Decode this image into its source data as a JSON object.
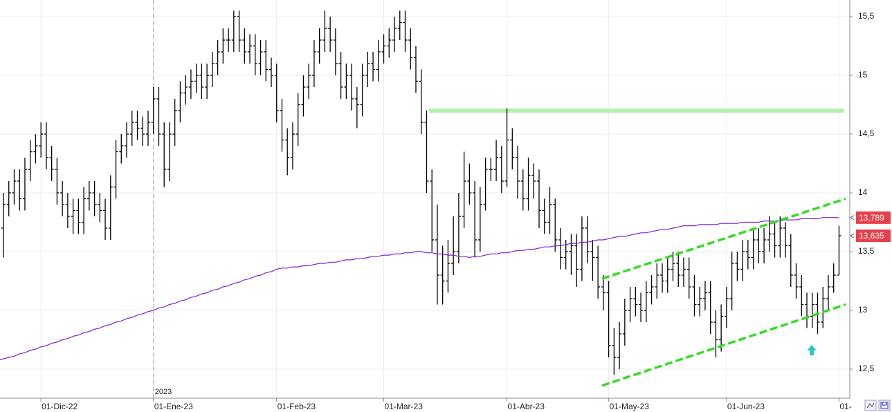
{
  "chart_data": {
    "type": "ohlc",
    "categories": [
      null,
      null,
      null,
      null,
      null,
      null,
      null,
      "01-Dic-22",
      null,
      null,
      null,
      null,
      null,
      null,
      null,
      null,
      null,
      null,
      null,
      null,
      null,
      null,
      null,
      null,
      null,
      null,
      null,
      null,
      "01-Ene-23",
      null,
      null,
      null,
      null,
      null,
      null,
      null,
      null,
      null,
      null,
      null,
      null,
      null,
      null,
      null,
      null,
      null,
      null,
      null,
      null,
      null,
      null,
      "01-Feb-23",
      null,
      null,
      null,
      null,
      null,
      null,
      null,
      null,
      null,
      null,
      null,
      null,
      null,
      null,
      null,
      null,
      null,
      null,
      null,
      "01-Mar-23",
      null,
      null,
      null,
      null,
      null,
      null,
      null,
      null,
      null,
      null,
      null,
      null,
      null,
      null,
      null,
      null,
      null,
      null,
      null,
      null,
      null,
      null,
      "01-Abr-23",
      null,
      null,
      null,
      null,
      null,
      null,
      null,
      null,
      null,
      null,
      null,
      null,
      null,
      null,
      null,
      null,
      null,
      null,
      "01-May-23",
      null,
      null,
      null,
      null,
      null,
      null,
      null,
      null,
      null,
      null,
      null,
      null,
      null,
      null,
      null,
      null,
      null,
      null,
      null,
      null,
      null,
      "01-Jun-23",
      null,
      null,
      null,
      null,
      null,
      null,
      null,
      null,
      null,
      null,
      null,
      null,
      null,
      null,
      null,
      null,
      null,
      null,
      null,
      null,
      "01-"
    ],
    "year_label": "2023",
    "series": [
      {
        "color": "#000000",
        "open": [
          13.7,
          13.9,
          14.0,
          14.1,
          13.95,
          14.2,
          14.35,
          14.4,
          14.5,
          14.3,
          14.2,
          14.0,
          13.9,
          13.8,
          13.85,
          13.75,
          13.95,
          14.0,
          13.9,
          13.85,
          13.7,
          14.05,
          14.35,
          14.4,
          14.5,
          14.6,
          14.55,
          14.5,
          14.6,
          14.8,
          14.5,
          14.2,
          14.5,
          14.7,
          14.85,
          14.9,
          14.95,
          15.0,
          14.9,
          15.0,
          15.1,
          15.2,
          15.3,
          15.3,
          15.5,
          15.3,
          15.2,
          15.25,
          15.1,
          15.2,
          15.05,
          15.0,
          14.7,
          14.45,
          14.3,
          14.5,
          14.75,
          14.9,
          15.0,
          15.2,
          15.3,
          15.4,
          15.3,
          15.1,
          14.9,
          15.0,
          14.8,
          14.75,
          15.0,
          15.1,
          15.05,
          15.2,
          15.25,
          15.3,
          15.4,
          15.45,
          15.3,
          15.15,
          14.95,
          14.6,
          14.1,
          13.6,
          13.3,
          13.25,
          13.4,
          13.5,
          13.8,
          14.1,
          14.0,
          13.6,
          13.9,
          14.2,
          14.2,
          14.3,
          14.1,
          14.45,
          14.3,
          14.1,
          13.95,
          14.15,
          14.1,
          13.85,
          13.75,
          13.9,
          13.6,
          13.45,
          13.5,
          13.55,
          13.35,
          13.7,
          13.5,
          13.45,
          13.2,
          13.15,
          12.7,
          12.6,
          12.8,
          13.0,
          13.1,
          13.05,
          13.0,
          13.15,
          13.2,
          13.3,
          13.25,
          13.35,
          13.4,
          13.3,
          13.35,
          13.2,
          13.05,
          13.1,
          13.15,
          12.9,
          12.75,
          12.95,
          13.1,
          13.4,
          13.35,
          13.5,
          13.45,
          13.6,
          13.5,
          13.6,
          13.65,
          13.55,
          13.7,
          13.55,
          13.3,
          13.2,
          13.05,
          12.95,
          13.05,
          12.9,
          13.1,
          13.2,
          13.3
        ],
        "high": [
          14.0,
          14.1,
          14.2,
          14.2,
          14.3,
          14.45,
          14.5,
          14.6,
          14.6,
          14.4,
          14.3,
          14.1,
          14.0,
          13.95,
          13.95,
          14.05,
          14.1,
          14.1,
          14.0,
          13.95,
          14.15,
          14.45,
          14.5,
          14.6,
          14.7,
          14.7,
          14.65,
          14.7,
          14.9,
          14.9,
          14.6,
          14.6,
          14.8,
          14.95,
          15.0,
          15.05,
          15.1,
          15.1,
          15.1,
          15.2,
          15.3,
          15.4,
          15.4,
          15.55,
          15.55,
          15.4,
          15.35,
          15.35,
          15.3,
          15.3,
          15.15,
          15.1,
          14.8,
          14.55,
          14.6,
          14.85,
          15.0,
          15.1,
          15.3,
          15.4,
          15.55,
          15.5,
          15.4,
          15.2,
          15.1,
          15.1,
          14.9,
          15.1,
          15.2,
          15.2,
          15.3,
          15.35,
          15.4,
          15.5,
          15.55,
          15.55,
          15.4,
          15.25,
          15.05,
          14.7,
          14.2,
          13.9,
          13.55,
          13.6,
          13.8,
          14.0,
          14.35,
          14.25,
          14.1,
          14.05,
          14.3,
          14.3,
          14.45,
          14.4,
          14.72,
          14.55,
          14.4,
          14.2,
          14.3,
          14.25,
          14.2,
          13.95,
          14.05,
          13.95,
          13.7,
          13.6,
          13.65,
          13.65,
          13.8,
          13.8,
          13.6,
          13.55,
          13.3,
          13.25,
          12.85,
          12.9,
          13.1,
          13.2,
          13.2,
          13.15,
          13.25,
          13.3,
          13.4,
          13.4,
          13.45,
          13.5,
          13.5,
          13.45,
          13.45,
          13.3,
          13.2,
          13.25,
          13.25,
          13.0,
          13.05,
          13.2,
          13.5,
          13.5,
          13.6,
          13.6,
          13.7,
          13.7,
          13.7,
          13.8,
          13.75,
          13.8,
          13.75,
          13.65,
          13.4,
          13.3,
          13.15,
          13.15,
          13.15,
          13.2,
          13.3,
          13.4,
          13.72
        ],
        "low": [
          13.45,
          13.8,
          13.9,
          13.85,
          13.85,
          14.1,
          14.25,
          14.3,
          14.2,
          14.1,
          13.9,
          13.8,
          13.7,
          13.65,
          13.65,
          13.65,
          13.85,
          13.8,
          13.75,
          13.6,
          13.6,
          13.95,
          14.25,
          14.3,
          14.4,
          14.45,
          14.4,
          14.4,
          14.5,
          14.4,
          14.05,
          14.1,
          14.4,
          14.6,
          14.75,
          14.8,
          14.85,
          14.8,
          14.8,
          14.9,
          15.0,
          15.1,
          15.2,
          15.2,
          15.2,
          15.1,
          15.1,
          15.0,
          15.0,
          14.95,
          14.9,
          14.6,
          14.35,
          14.15,
          14.2,
          14.4,
          14.65,
          14.8,
          14.9,
          15.1,
          15.2,
          15.2,
          15.0,
          14.8,
          14.8,
          14.7,
          14.55,
          14.65,
          14.9,
          14.95,
          14.95,
          15.1,
          15.15,
          15.2,
          15.3,
          15.2,
          15.05,
          14.85,
          14.5,
          14.0,
          13.5,
          13.05,
          13.05,
          13.15,
          13.3,
          13.4,
          13.7,
          13.9,
          13.45,
          13.5,
          13.85,
          14.1,
          14.1,
          14.0,
          14.05,
          14.2,
          13.95,
          13.85,
          13.85,
          13.95,
          13.7,
          13.65,
          13.65,
          13.5,
          13.35,
          13.35,
          13.3,
          13.2,
          13.25,
          13.4,
          13.25,
          13.1,
          13.0,
          12.6,
          12.45,
          12.5,
          12.7,
          12.9,
          12.95,
          12.9,
          12.9,
          13.05,
          13.1,
          13.15,
          13.15,
          13.25,
          13.2,
          13.2,
          13.1,
          12.95,
          12.95,
          13.0,
          12.8,
          12.6,
          12.65,
          12.85,
          13.0,
          13.25,
          13.25,
          13.35,
          13.35,
          13.4,
          13.4,
          13.5,
          13.45,
          13.45,
          13.45,
          13.2,
          13.1,
          12.95,
          12.85,
          12.85,
          12.8,
          12.85,
          13.0,
          13.15,
          13.3
        ],
        "close": [
          13.9,
          14.0,
          14.1,
          13.95,
          14.2,
          14.35,
          14.4,
          14.5,
          14.3,
          14.2,
          14.0,
          13.9,
          13.8,
          13.85,
          13.75,
          13.95,
          14.0,
          13.9,
          13.85,
          13.7,
          14.05,
          14.35,
          14.4,
          14.5,
          14.6,
          14.55,
          14.5,
          14.6,
          14.8,
          14.5,
          14.2,
          14.5,
          14.7,
          14.85,
          14.9,
          14.95,
          15.0,
          14.9,
          15.0,
          15.1,
          15.2,
          15.3,
          15.3,
          15.5,
          15.3,
          15.2,
          15.25,
          15.1,
          15.2,
          15.05,
          15.0,
          14.7,
          14.45,
          14.3,
          14.5,
          14.75,
          14.9,
          15.0,
          15.2,
          15.3,
          15.4,
          15.3,
          15.1,
          14.9,
          15.0,
          14.8,
          14.75,
          15.0,
          15.1,
          15.05,
          15.2,
          15.25,
          15.3,
          15.4,
          15.45,
          15.3,
          15.15,
          14.95,
          14.6,
          14.1,
          13.6,
          13.3,
          13.25,
          13.4,
          13.5,
          13.8,
          14.1,
          14.0,
          13.6,
          13.9,
          14.2,
          14.2,
          14.3,
          14.1,
          14.45,
          14.3,
          14.1,
          13.95,
          14.15,
          14.1,
          13.85,
          13.75,
          13.9,
          13.6,
          13.45,
          13.5,
          13.55,
          13.35,
          13.7,
          13.5,
          13.45,
          13.2,
          13.15,
          12.7,
          12.6,
          12.8,
          13.0,
          13.1,
          13.05,
          13.0,
          13.15,
          13.2,
          13.3,
          13.25,
          13.35,
          13.4,
          13.3,
          13.35,
          13.2,
          13.05,
          13.1,
          13.15,
          12.9,
          12.75,
          12.95,
          13.1,
          13.4,
          13.35,
          13.5,
          13.45,
          13.6,
          13.5,
          13.6,
          13.65,
          13.55,
          13.7,
          13.55,
          13.3,
          13.2,
          13.05,
          12.95,
          13.05,
          12.9,
          13.1,
          13.2,
          13.3,
          13.635
        ]
      },
      {
        "type": "line",
        "color": "#7a1fd6",
        "values": [
          12.58,
          12.6,
          12.61,
          12.63,
          12.64,
          12.66,
          12.67,
          12.69,
          12.7,
          12.72,
          12.73,
          12.75,
          12.76,
          12.78,
          12.79,
          12.81,
          12.82,
          12.84,
          12.85,
          12.87,
          12.88,
          12.9,
          12.91,
          12.93,
          12.94,
          12.96,
          12.97,
          12.99,
          13.0,
          13.02,
          13.03,
          13.05,
          13.06,
          13.08,
          13.09,
          13.11,
          13.12,
          13.14,
          13.15,
          13.17,
          13.18,
          13.2,
          13.21,
          13.23,
          13.24,
          13.26,
          13.27,
          13.29,
          13.3,
          13.32,
          13.33,
          13.35,
          13.36,
          13.36,
          13.37,
          13.37,
          13.38,
          13.38,
          13.39,
          13.4,
          13.4,
          13.41,
          13.41,
          13.42,
          13.43,
          13.43,
          13.44,
          13.44,
          13.45,
          13.46,
          13.46,
          13.47,
          13.47,
          13.48,
          13.48,
          13.49,
          13.49,
          13.5,
          13.5,
          13.49,
          13.49,
          13.48,
          13.48,
          13.47,
          13.47,
          13.46,
          13.46,
          13.45,
          13.46,
          13.46,
          13.47,
          13.48,
          13.48,
          13.49,
          13.49,
          13.5,
          13.51,
          13.51,
          13.52,
          13.52,
          13.53,
          13.54,
          13.54,
          13.55,
          13.55,
          13.56,
          13.57,
          13.57,
          13.58,
          13.58,
          13.59,
          13.6,
          13.6,
          13.61,
          13.62,
          13.63,
          13.63,
          13.64,
          13.65,
          13.66,
          13.66,
          13.67,
          13.68,
          13.69,
          13.69,
          13.7,
          13.71,
          13.72,
          13.72,
          13.72,
          13.73,
          13.73,
          13.73,
          13.73,
          13.74,
          13.74,
          13.74,
          13.74,
          13.75,
          13.75,
          13.75,
          13.75,
          13.76,
          13.76,
          13.76,
          13.76,
          13.77,
          13.77,
          13.77,
          13.78,
          13.78,
          13.78,
          13.78,
          13.79,
          13.79,
          13.79,
          13.789
        ]
      }
    ],
    "ylim": [
      12.253,
      15.641
    ],
    "yticks": [
      {
        "value": 12.5,
        "label": "12,5"
      },
      13,
      {
        "value": 13.5,
        "label": "13,5"
      },
      14,
      {
        "value": 14.5,
        "label": "14,5"
      },
      15,
      {
        "value": 15.5,
        "label": "15,5"
      }
    ],
    "grid": true,
    "price_labels": [
      {
        "value": 13.789,
        "label": "13,789",
        "color": "#e8404a"
      },
      {
        "value": 13.635,
        "label": "13,635",
        "color": "#e8404a"
      }
    ],
    "horizontal_line": {
      "value": 14.7,
      "color": "#b4f0b0"
    },
    "channel": {
      "color": "#33dd22",
      "upper": [
        13.27,
        13.95
      ],
      "lower": [
        12.36,
        13.05
      ]
    }
  }
}
